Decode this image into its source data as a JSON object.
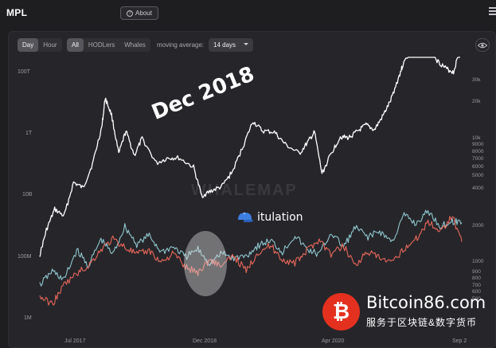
{
  "app": {
    "logo": "MPL",
    "about_label": "About",
    "about_icon": "question-circle-icon",
    "menu_icon": "hamburger-menu-icon"
  },
  "toolbar": {
    "period_options": [
      "Day",
      "Hour"
    ],
    "period_selected": "Day",
    "holder_options": [
      "All",
      "HODLers",
      "Whales"
    ],
    "holder_selected": "All",
    "moving_average_label": "moving average:",
    "moving_average_value": "14 days",
    "visibility_icon": "eye-icon"
  },
  "colors": {
    "background": "#1e1e21",
    "panel": "#26262a",
    "price_line": "#ffffff",
    "series_blue": "#8fc6cf",
    "series_red": "#e8665a",
    "bitcoin_badge": "#e4311f"
  },
  "overlays": {
    "watermark": "WHALEMAP",
    "annotation": "Dec 2018",
    "sticker_text": "itulation",
    "site_domain": "Bitcoin86.com",
    "site_tagline": "服务于区块链&数字货币"
  },
  "chart_data": {
    "type": "line",
    "x_ticks": [
      "Jul 2017",
      "Dec 2018",
      "Apr 2020",
      "Sep 2"
    ],
    "left_axis_ticks": [
      "100T",
      "1T",
      "10B",
      "100M",
      "1M"
    ],
    "left_axis_scale": "log",
    "right_axis_ticks": [
      "30k",
      "20k",
      "10k",
      "9000",
      "8000",
      "7000",
      "6000",
      "5000",
      "4000",
      "2000",
      "1000",
      "900",
      "800",
      "700",
      "600",
      "500"
    ],
    "right_axis_scale": "log",
    "grid": false,
    "series": [
      {
        "color": "#ffffff",
        "axis": "right",
        "x": [
          "2017-04-15",
          "2017-05-10",
          "2017-06-10",
          "2017-07-15",
          "2017-08-20",
          "2017-09-25",
          "2017-10-30",
          "2017-12-05",
          "2017-12-17",
          "2018-01-10",
          "2018-02-06",
          "2018-03-05",
          "2018-04-06",
          "2018-05-05",
          "2018-06-28",
          "2018-08-10",
          "2018-09-20",
          "2018-11-15",
          "2018-12-15",
          "2019-01-20",
          "2019-03-01",
          "2019-04-10",
          "2019-05-20",
          "2019-06-26",
          "2019-08-01",
          "2019-09-15",
          "2019-10-25",
          "2019-12-18",
          "2020-01-20",
          "2020-02-13",
          "2020-03-12",
          "2020-04-15",
          "2020-05-20",
          "2020-06-20",
          "2020-07-25",
          "2020-08-25",
          "2020-09-25",
          "2020-10-25",
          "2020-11-25",
          "2020-12-27",
          "2021-01-10",
          "2021-02-20",
          "2021-03-14",
          "2021-04-14",
          "2021-05-19",
          "2021-06-22",
          "2021-07-20",
          "2021-08-14"
        ],
        "values": [
          1150,
          1800,
          2600,
          2300,
          4200,
          3800,
          5800,
          11500,
          19000,
          14000,
          7000,
          10500,
          6800,
          9200,
          5900,
          6500,
          6500,
          5500,
          3300,
          3600,
          3900,
          5100,
          8000,
          12500,
          10500,
          10300,
          8300,
          7000,
          8700,
          10300,
          4900,
          7000,
          9500,
          9300,
          10500,
          11700,
          10700,
          13500,
          18000,
          28000,
          34000,
          50000,
          58000,
          61000,
          37000,
          32000,
          30000,
          46000
        ]
      },
      {
        "color": "#8fc6cf",
        "axis": "left",
        "x": [
          "2017-04-15",
          "2017-06-01",
          "2017-07-15",
          "2017-09-01",
          "2017-10-15",
          "2017-12-01",
          "2018-01-15",
          "2018-03-01",
          "2018-04-15",
          "2018-06-01",
          "2018-07-15",
          "2018-09-01",
          "2018-10-15",
          "2018-12-01",
          "2019-01-15",
          "2019-03-01",
          "2019-04-15",
          "2019-06-01",
          "2019-07-15",
          "2019-09-01",
          "2019-10-15",
          "2019-12-01",
          "2020-01-15",
          "2020-03-01",
          "2020-04-15",
          "2020-06-01",
          "2020-07-15",
          "2020-09-01",
          "2020-10-15",
          "2020-12-01",
          "2021-01-15",
          "2021-03-01",
          "2021-04-15",
          "2021-06-01",
          "2021-07-15",
          "2021-08-20"
        ],
        "values": [
          40,
          62,
          48,
          95,
          70,
          112,
          88,
          132,
          104,
          118,
          92,
          100,
          84,
          96,
          74,
          90,
          82,
          86,
          102,
          110,
          92,
          118,
          96,
          88,
          122,
          100,
          130,
          116,
          124,
          108,
          150,
          136,
          156,
          132,
          140,
          138
        ]
      },
      {
        "color": "#e8665a",
        "axis": "left",
        "x": [
          "2017-04-15",
          "2017-06-01",
          "2017-07-15",
          "2017-09-01",
          "2017-10-15",
          "2017-12-01",
          "2018-01-15",
          "2018-03-01",
          "2018-04-15",
          "2018-06-01",
          "2018-07-15",
          "2018-09-01",
          "2018-10-15",
          "2018-12-01",
          "2019-01-15",
          "2019-03-01",
          "2019-04-15",
          "2019-06-01",
          "2019-07-15",
          "2019-09-01",
          "2019-10-15",
          "2019-12-01",
          "2020-01-15",
          "2020-03-01",
          "2020-04-15",
          "2020-06-01",
          "2020-07-15",
          "2020-09-01",
          "2020-10-15",
          "2020-12-01",
          "2021-01-15",
          "2021-03-01",
          "2021-04-15",
          "2021-06-01",
          "2021-07-15",
          "2021-08-20"
        ],
        "values": [
          22,
          10,
          40,
          58,
          70,
          96,
          112,
          100,
          88,
          94,
          76,
          90,
          68,
          60,
          80,
          70,
          86,
          62,
          92,
          102,
          80,
          74,
          94,
          112,
          88,
          102,
          72,
          92,
          82,
          74,
          98,
          112,
          140,
          124,
          150,
          108
        ]
      }
    ]
  }
}
